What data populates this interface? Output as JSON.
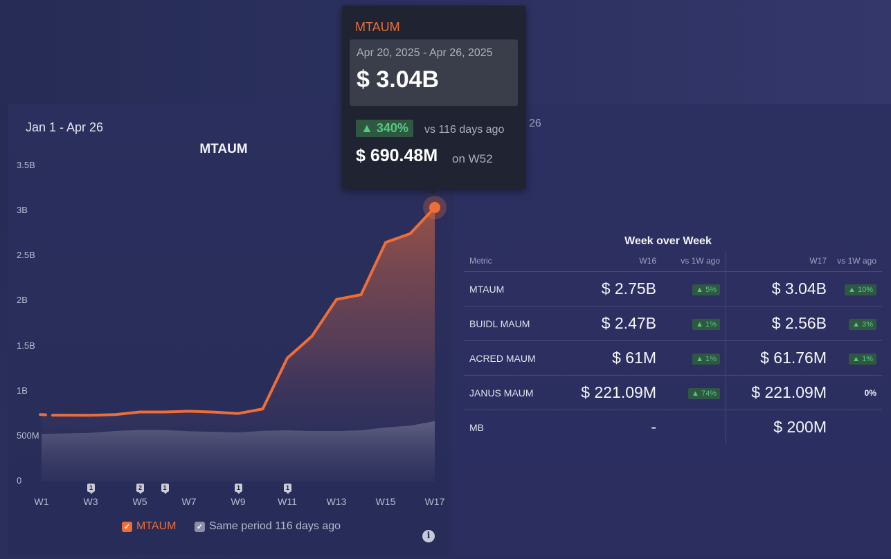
{
  "date_range": "Jan 1 - Apr 26",
  "partial_label": "26",
  "colors": {
    "mtaum": "#ee6e37",
    "compare": "#9c99b0",
    "positive": "#58c782"
  },
  "chart_data": {
    "type": "area",
    "title": "MTAUM",
    "x": [
      "W52",
      "W1",
      "W2",
      "W3",
      "W4",
      "W5",
      "W6",
      "W7",
      "W8",
      "W9",
      "W10",
      "W11",
      "W12",
      "W13",
      "W14",
      "W15",
      "W16",
      "W17"
    ],
    "xticks": [
      "W1",
      "W3",
      "W5",
      "W7",
      "W9",
      "W11",
      "W13",
      "W15",
      "W17"
    ],
    "yticks": [
      "0",
      "500M",
      "1B",
      "1.5B",
      "2B",
      "2.5B",
      "3B",
      "3.5B"
    ],
    "ylim": [
      0,
      3500000000
    ],
    "series": [
      {
        "name": "MTAUM",
        "values": [
          0.7429,
          0.7363,
          0.7356,
          0.7347,
          0.7428,
          0.771,
          0.771,
          0.7796,
          0.7703,
          0.7545,
          0.805,
          1.37,
          1.6117,
          2.02,
          2.0724,
          2.6525,
          2.75,
          3.04
        ],
        "unit": "B"
      },
      {
        "name": "Same period 116 days ago",
        "values": [
          0.527,
          0.529,
          0.533,
          0.54,
          0.56,
          0.573,
          0.572,
          0.557,
          0.552,
          0.544,
          0.562,
          0.568,
          0.56,
          0.56,
          0.568,
          0.6,
          0.62,
          0.67
        ],
        "unit": "B"
      }
    ],
    "annotations": [
      {
        "x": "W3",
        "label": "1"
      },
      {
        "x": "W5",
        "label": "2"
      },
      {
        "x": "W6",
        "label": "1"
      },
      {
        "x": "W9",
        "label": "1"
      },
      {
        "x": "W11",
        "label": "1"
      }
    ],
    "legend": [
      "MTAUM",
      "Same period 116 days ago"
    ]
  },
  "tooltip": {
    "title": "MTAUM",
    "range": "Apr 20, 2025 - Apr 26, 2025",
    "value": "$ 3.04B",
    "change": "▲ 340%",
    "vs": "vs 116 days ago",
    "prev_value": "$ 690.48M",
    "prev_on": "on W52"
  },
  "wow": {
    "title": "Week over Week",
    "headers": {
      "metric": "Metric",
      "w16": "W16",
      "d16": "vs 1W ago",
      "w17": "W17",
      "d17": "vs 1W ago"
    },
    "rows": [
      {
        "metric": "MTAUM",
        "w16": "$ 2.75B",
        "d16": "▲ 5%",
        "w17": "$ 3.04B",
        "d17": "▲ 10%"
      },
      {
        "metric": "BUIDL MAUM",
        "w16": "$ 2.47B",
        "d16": "▲ 1%",
        "w17": "$ 2.56B",
        "d17": "▲ 3%"
      },
      {
        "metric": "ACRED MAUM",
        "w16": "$ 61M",
        "d16": "▲ 1%",
        "w17": "$ 61.76M",
        "d17": "▲ 1%"
      },
      {
        "metric": "JANUS MAUM",
        "w16": "$ 221.09M",
        "d16": "▲ 74%",
        "w17": "$ 221.09M",
        "d17": "0%"
      },
      {
        "metric": "MB",
        "w16": "-",
        "d16": "",
        "w17": "$ 200M",
        "d17": ""
      }
    ]
  }
}
